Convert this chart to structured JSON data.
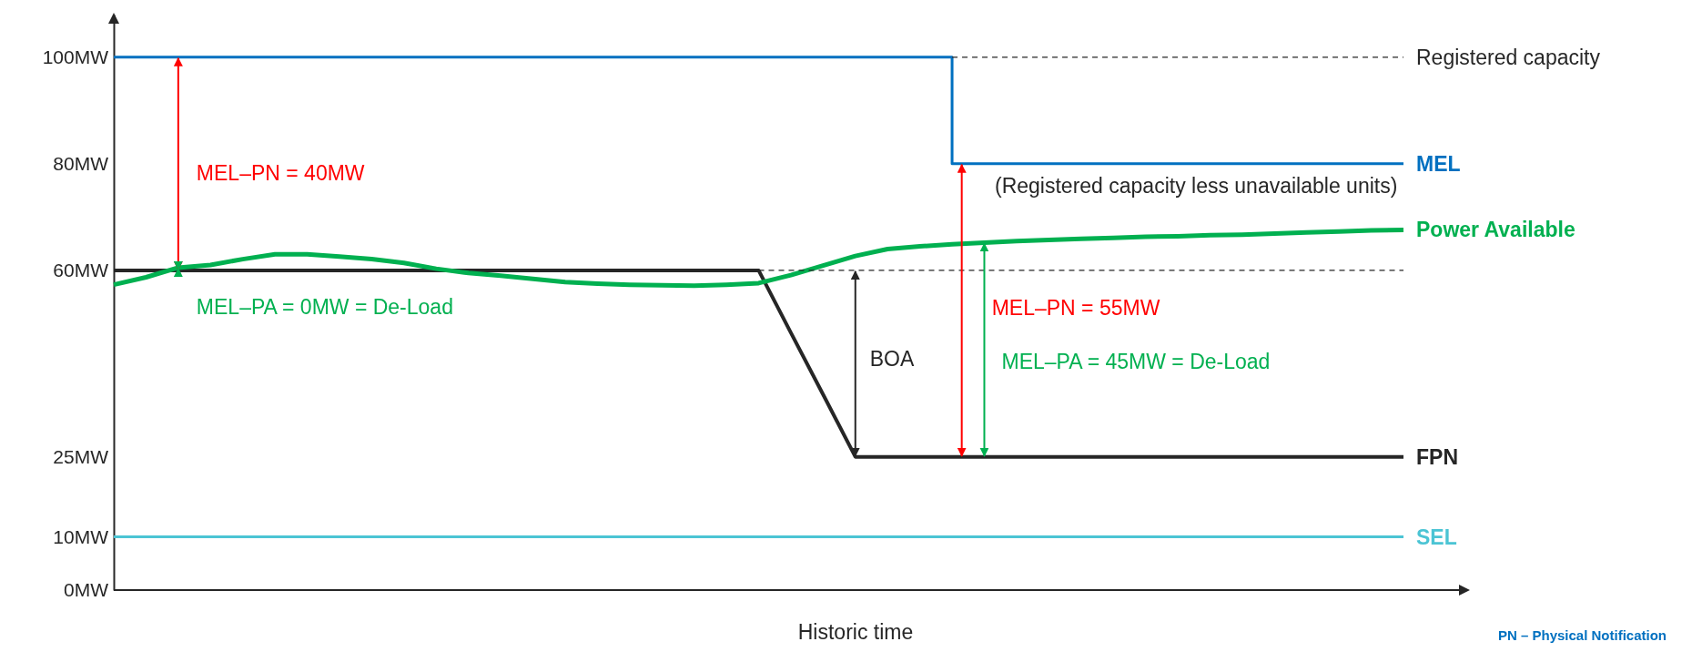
{
  "chart_data": {
    "type": "line",
    "xlabel": "Historic time",
    "categories": [
      null,
      null,
      null,
      null,
      null,
      null,
      null,
      null,
      null,
      null,
      null,
      null,
      null,
      null,
      null,
      null,
      null,
      null,
      null,
      null,
      null,
      null,
      null,
      null,
      null,
      null,
      null,
      null,
      null,
      null,
      null,
      null,
      null,
      null,
      null,
      null,
      null,
      null,
      null,
      null,
      null
    ],
    "ylim": [
      0,
      108
    ],
    "yticks": [
      {
        "value": 0,
        "label": "0MW"
      },
      {
        "value": 10,
        "label": "10MW"
      },
      {
        "value": 25,
        "label": "25MW"
      },
      {
        "value": 60,
        "label": "60MW"
      },
      {
        "value": 80,
        "label": "80MW"
      },
      {
        "value": 100,
        "label": "100MW"
      }
    ],
    "grid": false,
    "marker": "none",
    "series": [
      {
        "name": "MEL",
        "type": "step",
        "color": "#0070c0",
        "values": [
          100,
          100,
          100,
          100,
          100,
          100,
          100,
          100,
          100,
          100,
          100,
          100,
          100,
          100,
          100,
          100,
          100,
          100,
          100,
          100,
          100,
          100,
          100,
          100,
          100,
          100,
          80,
          80,
          80,
          80,
          80,
          80,
          80,
          80,
          80,
          80,
          80,
          80,
          80,
          80,
          80
        ]
      },
      {
        "name": "FPN",
        "color": "#262626",
        "values": [
          60,
          60,
          60,
          60,
          60,
          60,
          60,
          60,
          60,
          60,
          60,
          60,
          60,
          60,
          60,
          60,
          60,
          60,
          60,
          60,
          60,
          48.3,
          36.7,
          25,
          25,
          25,
          25,
          25,
          25,
          25,
          25,
          25,
          25,
          25,
          25,
          25,
          25,
          25,
          25,
          25,
          25
        ]
      },
      {
        "name": "Power Available",
        "color": "#00b050",
        "values": [
          57.3,
          58.7,
          60.5,
          61.0,
          62.1,
          63.0,
          63.0,
          62.6,
          62.1,
          61.4,
          60.3,
          59.5,
          59.0,
          58.4,
          57.8,
          57.5,
          57.3,
          57.2,
          57.1,
          57.3,
          57.6,
          59.1,
          60.9,
          62.7,
          64.0,
          64.5,
          64.9,
          65.2,
          65.5,
          65.7,
          65.9,
          66.1,
          66.3,
          66.4,
          66.6,
          66.7,
          66.9,
          67.1,
          67.3,
          67.5,
          67.6
        ]
      },
      {
        "name": "SEL",
        "color": "#4bc4d4",
        "values": [
          10,
          10,
          10,
          10,
          10,
          10,
          10,
          10,
          10,
          10,
          10,
          10,
          10,
          10,
          10,
          10,
          10,
          10,
          10,
          10,
          10,
          10,
          10,
          10,
          10,
          10,
          10,
          10,
          10,
          10,
          10,
          10,
          10,
          10,
          10,
          10,
          10,
          10,
          10,
          10,
          10
        ]
      },
      {
        "name": "Registered capacity",
        "color": "#262626",
        "line_style": "dashed",
        "values": [
          null,
          null,
          null,
          null,
          null,
          null,
          null,
          null,
          null,
          null,
          null,
          null,
          null,
          null,
          null,
          null,
          null,
          null,
          null,
          null,
          null,
          null,
          null,
          null,
          null,
          null,
          100,
          100,
          100,
          100,
          100,
          100,
          100,
          100,
          100,
          100,
          100,
          100,
          100,
          100,
          100
        ]
      },
      {
        "color": "#262626",
        "line_style": "dashed",
        "values": [
          null,
          null,
          null,
          null,
          null,
          null,
          null,
          null,
          null,
          null,
          null,
          null,
          null,
          null,
          null,
          null,
          null,
          null,
          null,
          null,
          60,
          60,
          60,
          60,
          60,
          60,
          60,
          60,
          60,
          60,
          60,
          60,
          60,
          60,
          60,
          60,
          60,
          60,
          60,
          60,
          60
        ]
      }
    ],
    "annotations": [
      "MEL–PN = 40MW",
      "MEL–PA = 0MW = De-Load",
      "BOA",
      "MEL–PN = 55MW",
      "MEL–PA = 45MW = De-Load",
      "(Registered capacity less unavailable units)",
      "PN – Physical Notification"
    ]
  }
}
